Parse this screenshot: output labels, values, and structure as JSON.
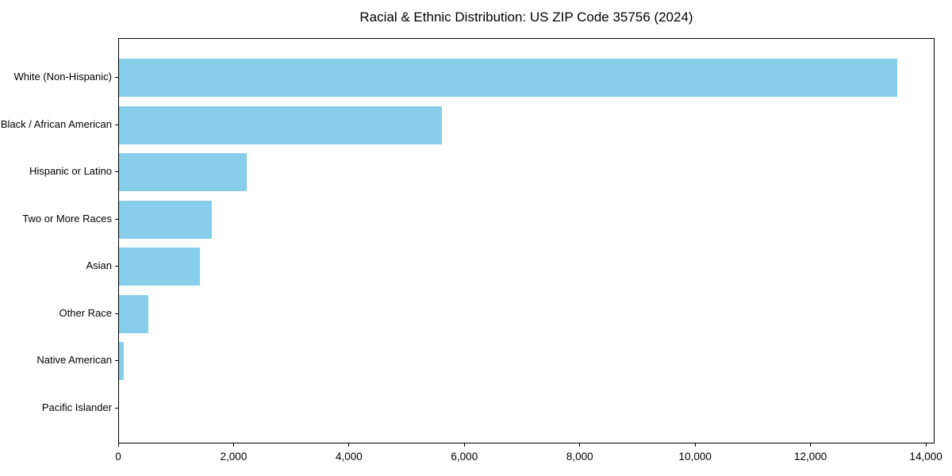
{
  "figure": {
    "background": "#ffffff"
  },
  "chart_data": {
    "type": "bar",
    "orientation": "horizontal",
    "title": "Racial & Ethnic Distribution: US ZIP Code 35756 (2024)",
    "xlabel": "",
    "ylabel": "",
    "categories": [
      "White (Non-Hispanic)",
      "Black / African American",
      "Hispanic or Latino",
      "Two or More Races",
      "Asian",
      "Other Race",
      "Native American",
      "Pacific Islander"
    ],
    "values": [
      13490,
      5600,
      2210,
      1610,
      1400,
      510,
      80,
      0
    ],
    "xlim": [
      0,
      14150
    ],
    "x_ticks": [
      0,
      2000,
      4000,
      6000,
      8000,
      10000,
      12000,
      14000
    ],
    "x_tick_labels": [
      "0",
      "2,000",
      "4,000",
      "6,000",
      "8,000",
      "10,000",
      "12,000",
      "14,000"
    ],
    "bar_color": "#87CEEB",
    "axis_color": "#000000",
    "text_color": "#000000",
    "grid": false,
    "legend": null
  }
}
